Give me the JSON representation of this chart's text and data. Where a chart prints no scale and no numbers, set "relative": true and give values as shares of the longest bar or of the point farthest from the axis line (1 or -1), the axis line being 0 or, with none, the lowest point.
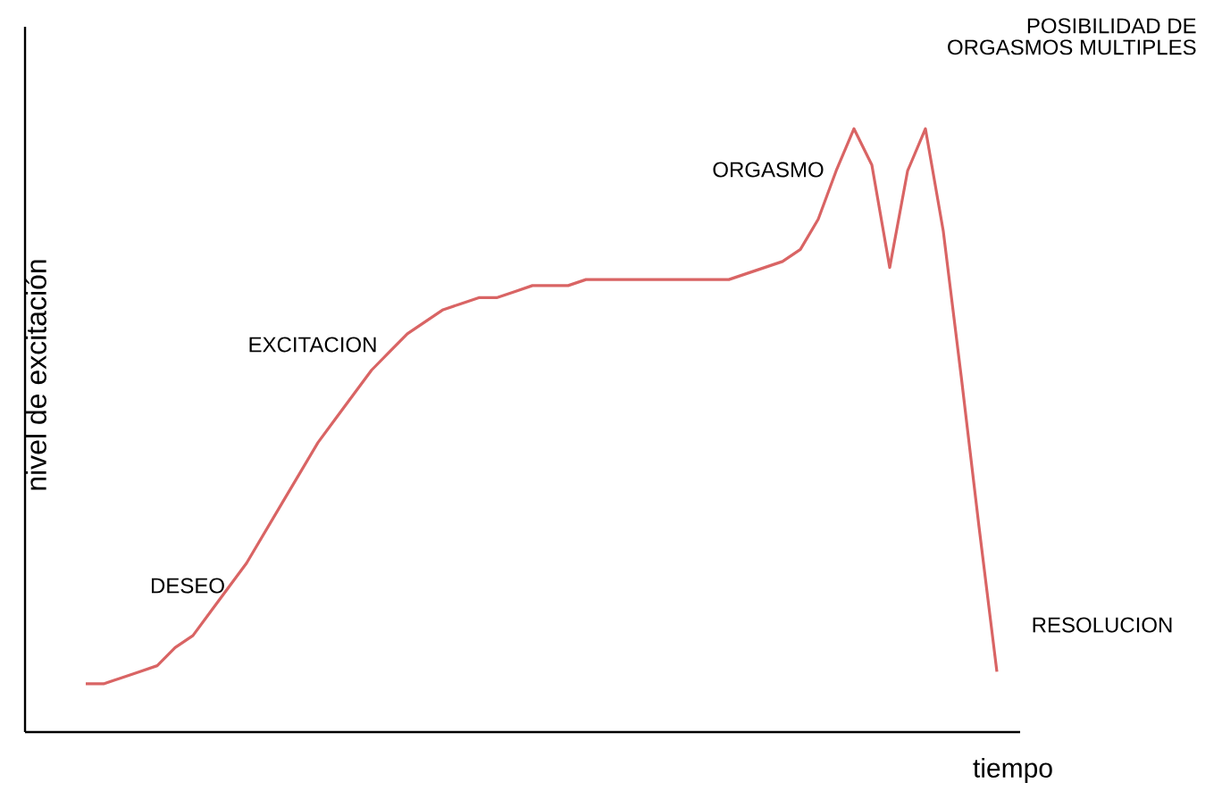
{
  "chart_data": {
    "type": "line",
    "relative": true,
    "xlabel": "tiempo",
    "ylabel": "nivel de excitación",
    "categories": [
      null,
      null,
      null,
      null,
      null,
      null,
      null,
      null,
      null,
      null,
      null,
      null,
      null,
      null,
      null,
      null,
      null,
      null,
      null,
      null,
      null,
      null,
      null,
      null,
      null,
      null,
      null,
      null,
      null,
      null,
      null,
      null,
      null,
      null,
      null,
      null,
      null,
      null,
      null,
      null,
      null,
      null,
      null,
      null,
      null,
      null,
      null,
      null,
      null,
      null,
      null,
      null
    ],
    "series": [
      {
        "color": "#d96464",
        "values": [
          0.08,
          0.08,
          0.09,
          0.1,
          0.11,
          0.14,
          0.16,
          0.2,
          0.24,
          0.28,
          0.33,
          0.38,
          0.43,
          0.48,
          0.52,
          0.56,
          0.6,
          0.63,
          0.66,
          0.68,
          0.7,
          0.71,
          0.72,
          0.72,
          0.73,
          0.74,
          0.74,
          0.74,
          0.75,
          0.75,
          0.75,
          0.75,
          0.75,
          0.75,
          0.75,
          0.75,
          0.75,
          0.76,
          0.77,
          0.78,
          0.8,
          0.85,
          0.93,
          1.0,
          0.94,
          0.77,
          0.93,
          1.0,
          0.83,
          0.59,
          0.34,
          0.1
        ]
      }
    ],
    "annotations": [
      "DESEO",
      "EXCITACION",
      "ORGASMO",
      "POSIBILIDAD DE ORGASMOS MULTIPLES",
      "RESOLUCION"
    ]
  }
}
